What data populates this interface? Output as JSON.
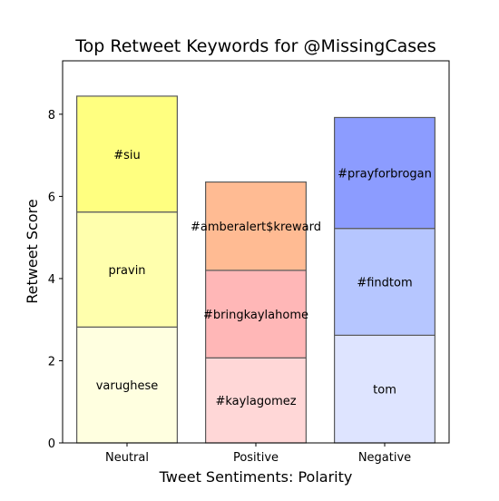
{
  "chart_data": {
    "type": "bar",
    "stacked": true,
    "title": "Top Retweet Keywords for @MissingCases",
    "xlabel": "Tweet Sentiments: Polarity",
    "ylabel": "Retweet Score",
    "ylim": [
      0,
      9.3
    ],
    "yticks": [
      0,
      2,
      4,
      6,
      8
    ],
    "grid": false,
    "legend": "none",
    "categories": [
      {
        "label": "Neutral",
        "segments": [
          {
            "keyword": "varughese",
            "value": 2.82,
            "color": "#ffffe0"
          },
          {
            "keyword": "pravin",
            "value": 2.8,
            "color": "#ffffad"
          },
          {
            "keyword": "#siu",
            "value": 2.82,
            "color": "#ffff80"
          }
        ]
      },
      {
        "label": "Positive",
        "segments": [
          {
            "keyword": "#kaylagomez",
            "value": 2.07,
            "color": "#ffd7d7"
          },
          {
            "keyword": "#bringkaylahome",
            "value": 2.13,
            "color": "#ffb7b7"
          },
          {
            "keyword": "#amberalert$kreward",
            "value": 2.15,
            "color": "#ffbb93"
          }
        ]
      },
      {
        "label": "Negative",
        "segments": [
          {
            "keyword": "tom",
            "value": 2.62,
            "color": "#dee4ff"
          },
          {
            "keyword": "#findtom",
            "value": 2.6,
            "color": "#b6c6ff"
          },
          {
            "keyword": "#prayforbrogan",
            "value": 2.7,
            "color": "#8c9cff"
          }
        ]
      }
    ]
  }
}
